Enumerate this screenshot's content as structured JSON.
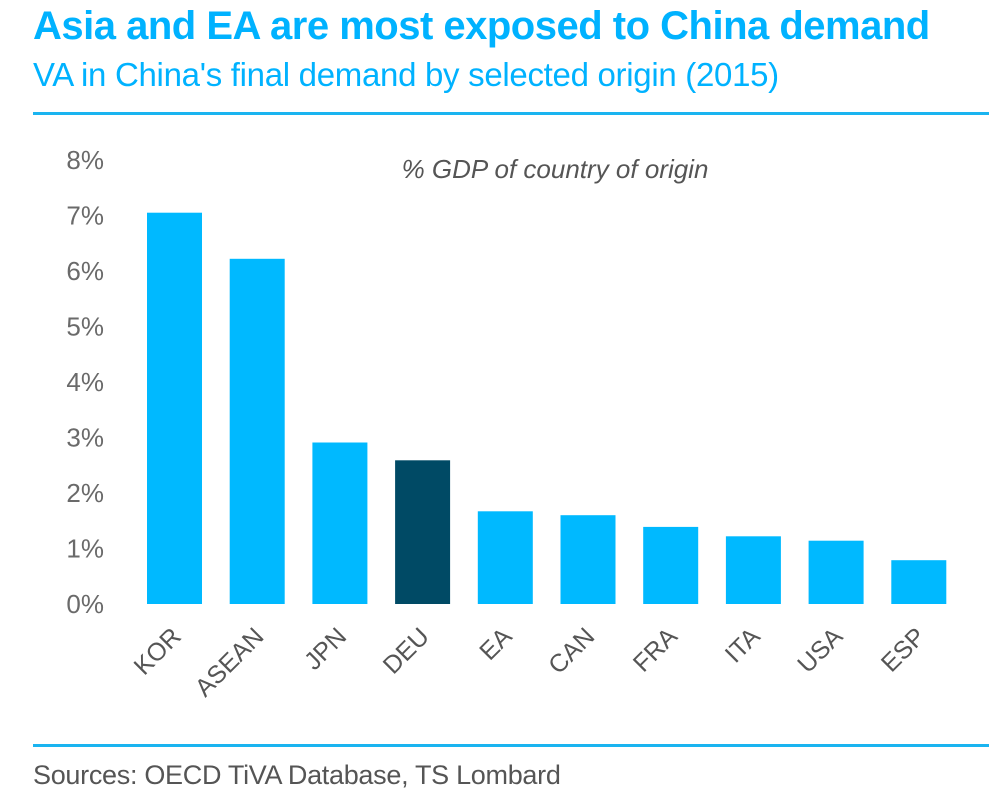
{
  "header": {
    "title": "Asia and EA are most exposed to China demand",
    "subtitle": "VA in China's final demand by selected origin (2015)"
  },
  "footer": {
    "source": "Sources: OECD TiVA Database, TS Lombard"
  },
  "colors": {
    "accent": "#00b2ff",
    "bar_default": "#00b9ff",
    "bar_highlight": "#004a65",
    "rule": "#1ab4f0"
  },
  "chart_data": {
    "type": "bar",
    "title": "Asia and EA are most exposed to China demand",
    "subtitle": "VA in China's final demand by selected origin (2015)",
    "annotation": "% GDP of country of origin",
    "xlabel": "",
    "ylabel": "",
    "categories": [
      "KOR",
      "ASEAN",
      "JPN",
      "DEU",
      "EA",
      "CAN",
      "FRA",
      "ITA",
      "USA",
      "ESP"
    ],
    "values": [
      7.05,
      6.22,
      2.91,
      2.59,
      1.67,
      1.6,
      1.39,
      1.22,
      1.14,
      0.79
    ],
    "highlight": [
      "DEU"
    ],
    "unit": "%",
    "ylim": [
      0,
      8
    ],
    "yticks": [
      0,
      1,
      2,
      3,
      4,
      5,
      6,
      7,
      8
    ],
    "ytick_labels": [
      "0%",
      "1%",
      "2%",
      "3%",
      "4%",
      "5%",
      "6%",
      "7%",
      "8%"
    ],
    "grid": false,
    "legend": "none",
    "xtick_rotation": -45
  }
}
